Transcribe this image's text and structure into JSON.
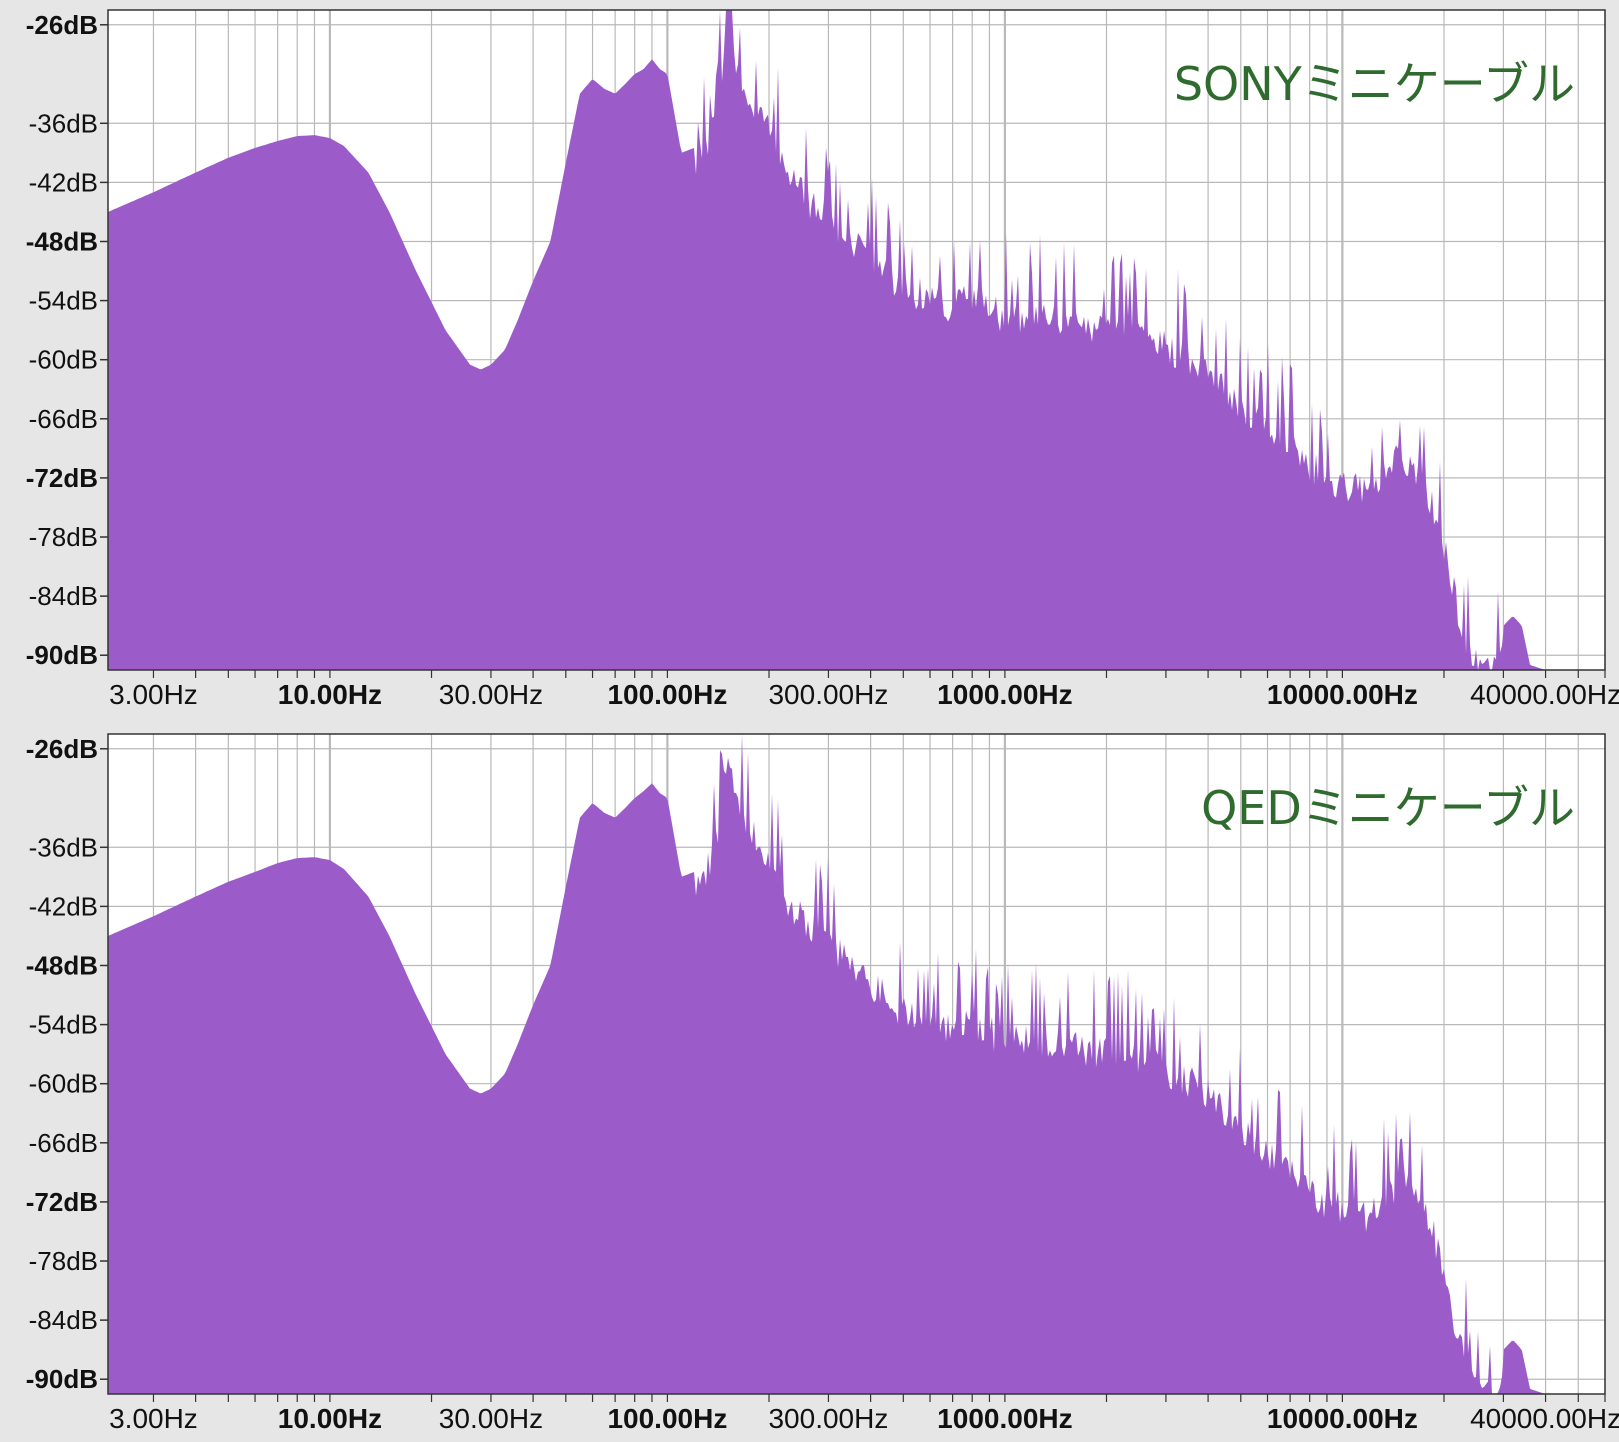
{
  "colors": {
    "fill": "#9b5cc9",
    "grid": "#b9b9b9",
    "plot_background": "#ffffff",
    "window_background": "#e6e6e6",
    "label": "#2f6b2f"
  },
  "chart_data": [
    {
      "type": "area",
      "title": "",
      "label": "SONYミニケーブル",
      "xlabel": "",
      "ylabel": "",
      "x_scale": "log",
      "xlim": [
        2.2,
        60000
      ],
      "ylim": [
        -91.5,
        -24.5
      ],
      "grid": true,
      "label_placement": "top-right",
      "y_ticks": [
        {
          "value": -26,
          "label": "-26dB",
          "bold": true
        },
        {
          "value": -36,
          "label": "-36dB",
          "bold": false
        },
        {
          "value": -42,
          "label": "-42dB",
          "bold": false
        },
        {
          "value": -48,
          "label": "-48dB",
          "bold": true
        },
        {
          "value": -54,
          "label": "-54dB",
          "bold": false
        },
        {
          "value": -60,
          "label": "-60dB",
          "bold": false
        },
        {
          "value": -66,
          "label": "-66dB",
          "bold": false
        },
        {
          "value": -72,
          "label": "-72dB",
          "bold": true
        },
        {
          "value": -78,
          "label": "-78dB",
          "bold": false
        },
        {
          "value": -84,
          "label": "-84dB",
          "bold": false
        },
        {
          "value": -90,
          "label": "-90dB",
          "bold": true
        }
      ],
      "x_ticks": [
        {
          "value": 3,
          "label": "3.00Hz",
          "bold": false
        },
        {
          "value": 10,
          "label": "10.00Hz",
          "bold": true
        },
        {
          "value": 30,
          "label": "30.00Hz",
          "bold": false
        },
        {
          "value": 100,
          "label": "100.00Hz",
          "bold": true
        },
        {
          "value": 300,
          "label": "300.00Hz",
          "bold": false
        },
        {
          "value": 1000,
          "label": "1000.00Hz",
          "bold": true
        },
        {
          "value": 10000,
          "label": "10000.00Hz",
          "bold": true
        },
        {
          "value": 40000,
          "label": "40000.00Hz",
          "bold": false
        }
      ],
      "series": [
        {
          "x": [
            2.2,
            3,
            4,
            5,
            6,
            7,
            8,
            9,
            10,
            11,
            13,
            15,
            18,
            22,
            26,
            28,
            30,
            33,
            36,
            40,
            45,
            50,
            55,
            60,
            65,
            70,
            75,
            80,
            85,
            90,
            95,
            100,
            110,
            120,
            130,
            140,
            150,
            160,
            170,
            180,
            200,
            230,
            260,
            300,
            350,
            400,
            450,
            500,
            600,
            700,
            800,
            900,
            1000,
            1200,
            1500,
            2000,
            2500,
            3000,
            4000,
            5000,
            6000,
            7000,
            8000,
            9000,
            10000,
            11000,
            12000,
            13000,
            14000,
            15000,
            16000,
            18000,
            20000,
            22000,
            24000,
            26000,
            28000,
            30000,
            32000,
            34000,
            36000,
            40000,
            60000
          ],
          "y": [
            -45,
            -43,
            -41,
            -39.5,
            -38.5,
            -37.8,
            -37.3,
            -37.2,
            -37.5,
            -38.3,
            -41,
            -45,
            -51,
            -57,
            -60.5,
            -61,
            -60.5,
            -59,
            -56,
            -52,
            -48,
            -40,
            -33,
            -31.5,
            -32.5,
            -33,
            -32,
            -31,
            -30.5,
            -29.5,
            -30.5,
            -31,
            -39,
            -38.5,
            -37,
            -34,
            -25.5,
            -29,
            -31,
            -33,
            -35,
            -40,
            -42,
            -44,
            -46,
            -48,
            -50,
            -51,
            -52,
            -53,
            -52,
            -53,
            -54,
            -54,
            -54.5,
            -55,
            -55.5,
            -57,
            -59,
            -63,
            -65,
            -67,
            -69,
            -70.5,
            -71,
            -71.5,
            -72,
            -70,
            -69,
            -68,
            -69.5,
            -72,
            -77,
            -84,
            -88,
            -91,
            -89.5,
            -87,
            -86,
            -87,
            -91,
            -91.5,
            -91.5
          ]
        }
      ]
    },
    {
      "type": "area",
      "title": "",
      "label": "QEDミニケーブル",
      "xlabel": "",
      "ylabel": "",
      "x_scale": "log",
      "xlim": [
        2.2,
        60000
      ],
      "ylim": [
        -91.5,
        -24.5
      ],
      "grid": true,
      "label_placement": "top-right",
      "y_ticks": [
        {
          "value": -26,
          "label": "-26dB",
          "bold": true
        },
        {
          "value": -36,
          "label": "-36dB",
          "bold": false
        },
        {
          "value": -42,
          "label": "-42dB",
          "bold": false
        },
        {
          "value": -48,
          "label": "-48dB",
          "bold": true
        },
        {
          "value": -54,
          "label": "-54dB",
          "bold": false
        },
        {
          "value": -60,
          "label": "-60dB",
          "bold": false
        },
        {
          "value": -66,
          "label": "-66dB",
          "bold": false
        },
        {
          "value": -72,
          "label": "-72dB",
          "bold": true
        },
        {
          "value": -78,
          "label": "-78dB",
          "bold": false
        },
        {
          "value": -84,
          "label": "-84dB",
          "bold": false
        },
        {
          "value": -90,
          "label": "-90dB",
          "bold": true
        }
      ],
      "x_ticks": [
        {
          "value": 3,
          "label": "3.00Hz",
          "bold": false
        },
        {
          "value": 10,
          "label": "10.00Hz",
          "bold": true
        },
        {
          "value": 30,
          "label": "30.00Hz",
          "bold": false
        },
        {
          "value": 100,
          "label": "100.00Hz",
          "bold": true
        },
        {
          "value": 300,
          "label": "300.00Hz",
          "bold": false
        },
        {
          "value": 1000,
          "label": "1000.00Hz",
          "bold": true
        },
        {
          "value": 10000,
          "label": "10000.00Hz",
          "bold": true
        },
        {
          "value": 40000,
          "label": "40000.00Hz",
          "bold": false
        }
      ],
      "series": [
        {
          "x": [
            2.2,
            3,
            4,
            5,
            6,
            7,
            8,
            9,
            10,
            11,
            13,
            15,
            18,
            22,
            26,
            28,
            30,
            33,
            36,
            40,
            45,
            50,
            55,
            60,
            65,
            70,
            75,
            80,
            85,
            90,
            95,
            100,
            110,
            120,
            130,
            140,
            150,
            160,
            170,
            180,
            200,
            230,
            260,
            300,
            350,
            400,
            450,
            500,
            600,
            700,
            800,
            900,
            1000,
            1200,
            1500,
            2000,
            2500,
            3000,
            4000,
            5000,
            6000,
            7000,
            8000,
            9000,
            10000,
            11000,
            12000,
            13000,
            14000,
            15000,
            16000,
            18000,
            20000,
            22000,
            24000,
            26000,
            28000,
            30000,
            32000,
            34000,
            36000,
            40000,
            60000
          ],
          "y": [
            -45,
            -43,
            -41,
            -39.5,
            -38.5,
            -37.6,
            -37.1,
            -37.0,
            -37.3,
            -38.2,
            -41,
            -45,
            -51,
            -57,
            -60.5,
            -61,
            -60.5,
            -59,
            -56,
            -52,
            -48,
            -40,
            -33,
            -31.5,
            -32.5,
            -33,
            -32,
            -31,
            -30.3,
            -29.5,
            -30.5,
            -31,
            -39,
            -38.5,
            -37,
            -34,
            -25.5,
            -29,
            -31,
            -33,
            -35,
            -40,
            -42,
            -44,
            -46,
            -48,
            -50,
            -51,
            -52,
            -53,
            -52,
            -53,
            -54,
            -54,
            -54.5,
            -55,
            -55.5,
            -57,
            -59,
            -63,
            -65,
            -67,
            -69,
            -70.5,
            -71,
            -71.5,
            -72,
            -70,
            -69,
            -68,
            -69.5,
            -72,
            -77,
            -84,
            -88,
            -91,
            -89.5,
            -87,
            -86,
            -87,
            -91,
            -91.5,
            -91.5
          ]
        }
      ]
    }
  ]
}
